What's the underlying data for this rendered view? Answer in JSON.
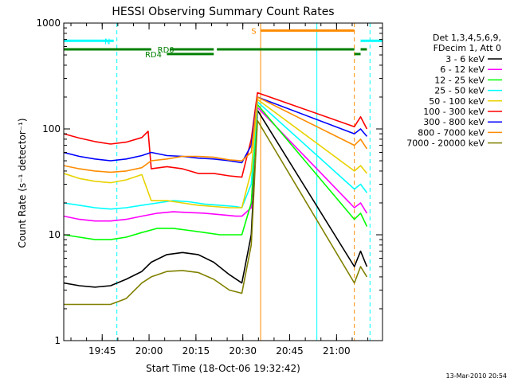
{
  "chart_data": {
    "type": "line",
    "title": "HESSI Observing Summary Count Rates",
    "xlabel": "Start Time (18-Oct-06 19:32:42)",
    "ylabel": "Count Rate (s⁻¹ detector⁻¹)",
    "x_unit": "minutes since 19:32:42",
    "xlim": [
      0,
      102
    ],
    "ylim": [
      1,
      1000
    ],
    "y_scale": "log",
    "x_ticks": [
      {
        "label": "19:45",
        "x": 12.3
      },
      {
        "label": "20:00",
        "x": 27.3
      },
      {
        "label": "20:15",
        "x": 42.3
      },
      {
        "label": "20:30",
        "x": 57.3
      },
      {
        "label": "20:45",
        "x": 72.3
      },
      {
        "label": "21:00",
        "x": 87.3
      }
    ],
    "y_ticks": [
      {
        "label": "1",
        "y": 1
      },
      {
        "label": "10",
        "y": 10
      },
      {
        "label": "100",
        "y": 100
      },
      {
        "label": "1000",
        "y": 1000
      }
    ],
    "grid": false,
    "legend_position": "right",
    "legend_header": [
      "Det 1,3,4,5,6,9,",
      "FDecim 1, Att 0"
    ],
    "footer_date": "13-Mar-2010 20:54",
    "series": [
      {
        "name": "3 - 6 keV",
        "color": "#000000",
        "points": [
          [
            0,
            3.5
          ],
          [
            5,
            3.3
          ],
          [
            10,
            3.2
          ],
          [
            15,
            3.3
          ],
          [
            20,
            3.8
          ],
          [
            25,
            4.5
          ],
          [
            28,
            5.5
          ],
          [
            33,
            6.5
          ],
          [
            38,
            6.8
          ],
          [
            43,
            6.5
          ],
          [
            48,
            5.5
          ],
          [
            53,
            4.2
          ],
          [
            57,
            3.5
          ],
          [
            60,
            10
          ],
          [
            62,
            150
          ],
          [
            93,
            5
          ],
          [
            95,
            7
          ],
          [
            97,
            5
          ]
        ]
      },
      {
        "name": "6 - 12 keV",
        "color": "#ff00ff",
        "points": [
          [
            0,
            15
          ],
          [
            5,
            14
          ],
          [
            10,
            13.5
          ],
          [
            15,
            13.5
          ],
          [
            20,
            14
          ],
          [
            25,
            15
          ],
          [
            30,
            16
          ],
          [
            35,
            16.5
          ],
          [
            40,
            16.2
          ],
          [
            45,
            16
          ],
          [
            50,
            15.5
          ],
          [
            55,
            15
          ],
          [
            57,
            15
          ],
          [
            60,
            18
          ],
          [
            62,
            160
          ],
          [
            93,
            18
          ],
          [
            95,
            20
          ],
          [
            97,
            16
          ]
        ]
      },
      {
        "name": "12 - 25 keV",
        "color": "#00ff00",
        "points": [
          [
            0,
            10
          ],
          [
            5,
            9.5
          ],
          [
            10,
            9
          ],
          [
            15,
            9
          ],
          [
            20,
            9.5
          ],
          [
            25,
            10.5
          ],
          [
            30,
            11.5
          ],
          [
            35,
            11.5
          ],
          [
            40,
            11
          ],
          [
            45,
            10.5
          ],
          [
            50,
            10
          ],
          [
            55,
            10
          ],
          [
            57,
            10
          ],
          [
            60,
            20
          ],
          [
            62,
            170
          ],
          [
            93,
            14
          ],
          [
            95,
            16
          ],
          [
            97,
            12
          ]
        ]
      },
      {
        "name": "25 - 50 keV",
        "color": "#00ffff",
        "points": [
          [
            0,
            20
          ],
          [
            5,
            19
          ],
          [
            10,
            18
          ],
          [
            15,
            17.5
          ],
          [
            20,
            18
          ],
          [
            25,
            19
          ],
          [
            30,
            20
          ],
          [
            35,
            21
          ],
          [
            40,
            20.5
          ],
          [
            45,
            19.5
          ],
          [
            50,
            19
          ],
          [
            55,
            18.5
          ],
          [
            57,
            18
          ],
          [
            60,
            30
          ],
          [
            62,
            180
          ],
          [
            93,
            27
          ],
          [
            95,
            30
          ],
          [
            97,
            25
          ]
        ]
      },
      {
        "name": "50 - 100 keV",
        "color": "#e8d200",
        "points": [
          [
            0,
            38
          ],
          [
            5,
            34
          ],
          [
            10,
            32
          ],
          [
            15,
            31
          ],
          [
            20,
            33
          ],
          [
            25,
            37
          ],
          [
            28,
            21
          ],
          [
            33,
            21
          ],
          [
            38,
            20
          ],
          [
            43,
            19
          ],
          [
            48,
            18.5
          ],
          [
            53,
            18
          ],
          [
            57,
            18
          ],
          [
            60,
            40
          ],
          [
            62,
            190
          ],
          [
            93,
            40
          ],
          [
            95,
            45
          ],
          [
            97,
            38
          ]
        ]
      },
      {
        "name": "100 - 300 keV",
        "color": "#ff0000",
        "points": [
          [
            0,
            90
          ],
          [
            5,
            82
          ],
          [
            10,
            76
          ],
          [
            15,
            72
          ],
          [
            20,
            75
          ],
          [
            25,
            83
          ],
          [
            27,
            95
          ],
          [
            28,
            42
          ],
          [
            33,
            44
          ],
          [
            38,
            42
          ],
          [
            43,
            38
          ],
          [
            48,
            38
          ],
          [
            53,
            36
          ],
          [
            57,
            35
          ],
          [
            60,
            80
          ],
          [
            62,
            220
          ],
          [
            93,
            105
          ],
          [
            95,
            130
          ],
          [
            97,
            100
          ]
        ]
      },
      {
        "name": "300 - 800 keV",
        "color": "#0000ff",
        "points": [
          [
            0,
            60
          ],
          [
            5,
            55
          ],
          [
            10,
            52
          ],
          [
            15,
            50
          ],
          [
            20,
            52
          ],
          [
            25,
            56
          ],
          [
            28,
            60
          ],
          [
            33,
            56
          ],
          [
            38,
            55
          ],
          [
            43,
            53
          ],
          [
            48,
            52
          ],
          [
            53,
            50
          ],
          [
            57,
            48
          ],
          [
            60,
            70
          ],
          [
            62,
            200
          ],
          [
            93,
            90
          ],
          [
            95,
            100
          ],
          [
            97,
            85
          ]
        ]
      },
      {
        "name": "800 - 7000 keV",
        "color": "#ff8c00",
        "points": [
          [
            0,
            45
          ],
          [
            5,
            42
          ],
          [
            10,
            40
          ],
          [
            15,
            39
          ],
          [
            20,
            40
          ],
          [
            25,
            43
          ],
          [
            28,
            50
          ],
          [
            33,
            52
          ],
          [
            38,
            55
          ],
          [
            43,
            55
          ],
          [
            48,
            54
          ],
          [
            53,
            51
          ],
          [
            57,
            50
          ],
          [
            60,
            60
          ],
          [
            62,
            200
          ],
          [
            93,
            70
          ],
          [
            95,
            80
          ],
          [
            97,
            65
          ]
        ]
      },
      {
        "name": "7000 - 20000 keV",
        "color": "#808000",
        "points": [
          [
            0,
            2.2
          ],
          [
            5,
            2.2
          ],
          [
            10,
            2.2
          ],
          [
            15,
            2.2
          ],
          [
            20,
            2.5
          ],
          [
            25,
            3.5
          ],
          [
            28,
            4
          ],
          [
            33,
            4.5
          ],
          [
            38,
            4.6
          ],
          [
            43,
            4.4
          ],
          [
            48,
            3.8
          ],
          [
            53,
            3
          ],
          [
            57,
            2.8
          ],
          [
            60,
            8
          ],
          [
            62,
            120
          ],
          [
            93,
            3.5
          ],
          [
            95,
            5
          ],
          [
            97,
            4
          ]
        ]
      }
    ],
    "annotations": [
      {
        "type": "bar",
        "label": "N",
        "color": "#00ffff",
        "y": 680,
        "x_start": 0,
        "x_end": 12,
        "label_x": 13
      },
      {
        "type": "bar",
        "label": "",
        "color": "#00ffff",
        "y": 680,
        "x_start": 12,
        "x_end": 16
      },
      {
        "type": "bar",
        "label": "",
        "color": "#00ffff",
        "y": 680,
        "x_start": 95,
        "x_end": 102
      },
      {
        "type": "bar",
        "label": "RD0",
        "color": "#008000",
        "y": 565,
        "x_start": 0,
        "x_end": 28,
        "label_x": 30
      },
      {
        "type": "bar",
        "label": "",
        "color": "#008000",
        "y": 565,
        "x_start": 34,
        "x_end": 48
      },
      {
        "type": "bar",
        "label": "",
        "color": "#008000",
        "y": 565,
        "x_start": 49,
        "x_end": 93
      },
      {
        "type": "bar",
        "label": "",
        "color": "#008000",
        "y": 565,
        "x_start": 95,
        "x_end": 97
      },
      {
        "type": "bar",
        "label": "RD4",
        "color": "#008000",
        "y": 510,
        "x_start": 33,
        "x_end": 48,
        "label_x": 26
      },
      {
        "type": "bar",
        "label": "",
        "color": "#008000",
        "y": 510,
        "x_start": 93,
        "x_end": 95
      },
      {
        "type": "bar",
        "label": "S",
        "color": "#ff8c00",
        "y": 850,
        "x_start": 63,
        "x_end": 93,
        "label_x": 60
      }
    ],
    "vlines": [
      {
        "x": 0,
        "color": "#00ffff",
        "style": "solid"
      },
      {
        "x": 17,
        "color": "#00ffff",
        "style": "dashed"
      },
      {
        "x": 63,
        "color": "#ff8c00",
        "style": "solid"
      },
      {
        "x": 81,
        "color": "#00ffff",
        "style": "solid"
      },
      {
        "x": 93,
        "color": "#ff8c00",
        "style": "dashed"
      },
      {
        "x": 98,
        "color": "#00ffff",
        "style": "dashed"
      }
    ]
  }
}
